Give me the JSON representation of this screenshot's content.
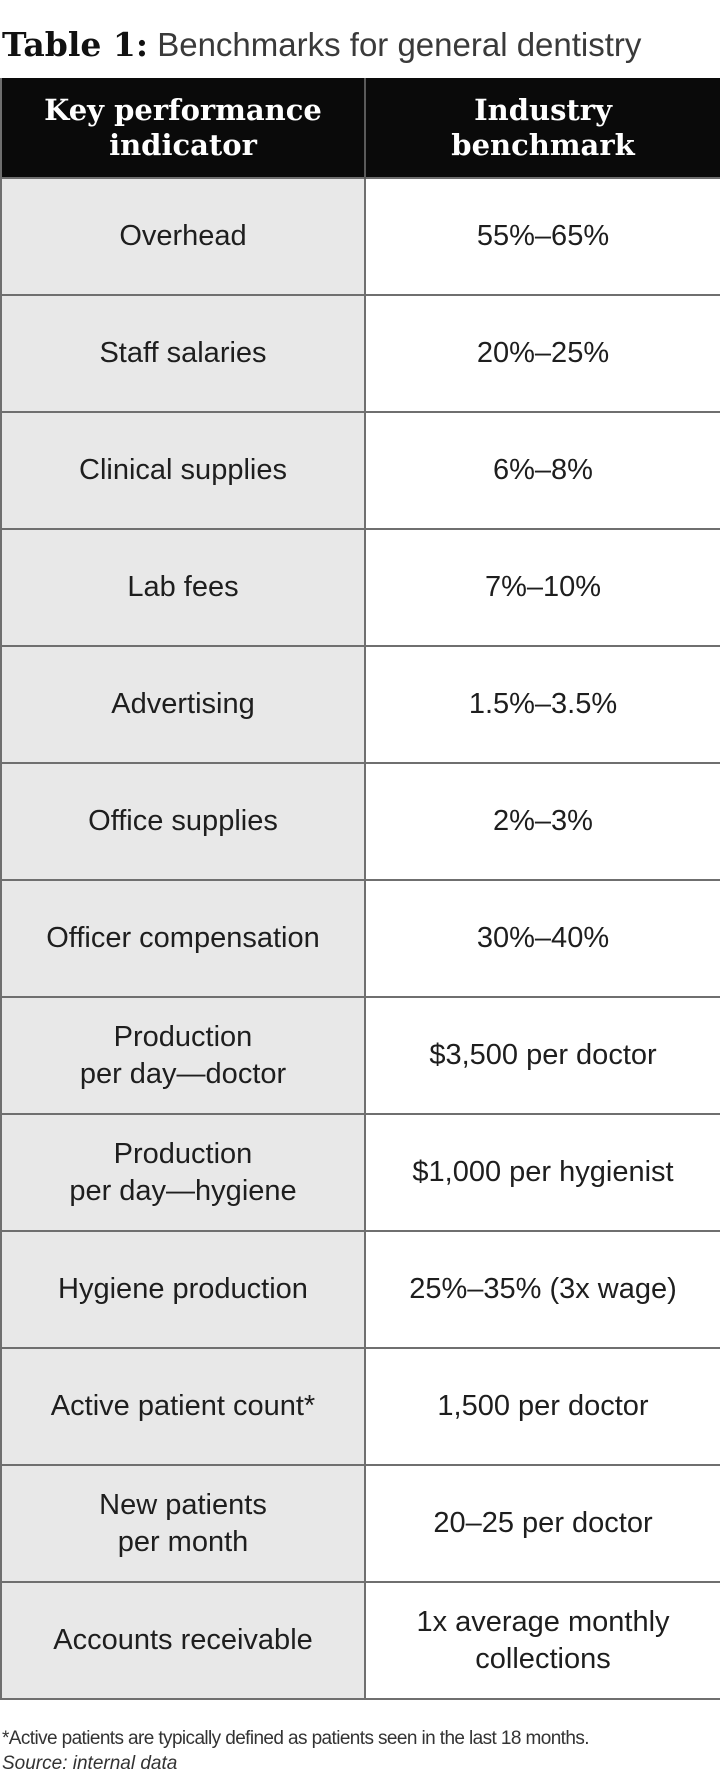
{
  "title": {
    "label": "Table 1:",
    "text": "Benchmarks for general dentistry"
  },
  "table": {
    "headers": {
      "kpi_line1": "Key performance",
      "kpi_line2": "indicator",
      "benchmark_line1": "Industry",
      "benchmark_line2": "benchmark"
    },
    "rows": [
      {
        "kpi": [
          "Overhead"
        ],
        "benchmark": [
          "55%–65%"
        ]
      },
      {
        "kpi": [
          "Staff salaries"
        ],
        "benchmark": [
          "20%–25%"
        ]
      },
      {
        "kpi": [
          "Clinical supplies"
        ],
        "benchmark": [
          "6%–8%"
        ]
      },
      {
        "kpi": [
          "Lab fees"
        ],
        "benchmark": [
          "7%–10%"
        ]
      },
      {
        "kpi": [
          "Advertising"
        ],
        "benchmark": [
          "1.5%–3.5%"
        ]
      },
      {
        "kpi": [
          "Office supplies"
        ],
        "benchmark": [
          "2%–3%"
        ]
      },
      {
        "kpi": [
          "Officer compensation"
        ],
        "benchmark": [
          "30%–40%"
        ]
      },
      {
        "kpi": [
          "Production",
          "per day—doctor"
        ],
        "benchmark": [
          "$3,500 per doctor"
        ]
      },
      {
        "kpi": [
          "Production",
          "per day—hygiene"
        ],
        "benchmark": [
          "$1,000 per hygienist"
        ]
      },
      {
        "kpi": [
          "Hygiene production"
        ],
        "benchmark": [
          "25%–35% (3x wage)"
        ]
      },
      {
        "kpi": [
          "Active patient count*"
        ],
        "benchmark": [
          "1,500 per doctor"
        ]
      },
      {
        "kpi": [
          "New patients",
          "per month"
        ],
        "benchmark": [
          "20–25 per doctor"
        ]
      },
      {
        "kpi": [
          "Accounts receivable"
        ],
        "benchmark": [
          "1x average monthly",
          "collections"
        ]
      }
    ]
  },
  "footnote": "*Active patients are typically defined as patients seen in the last 18 months.",
  "source": "Source: internal data"
}
